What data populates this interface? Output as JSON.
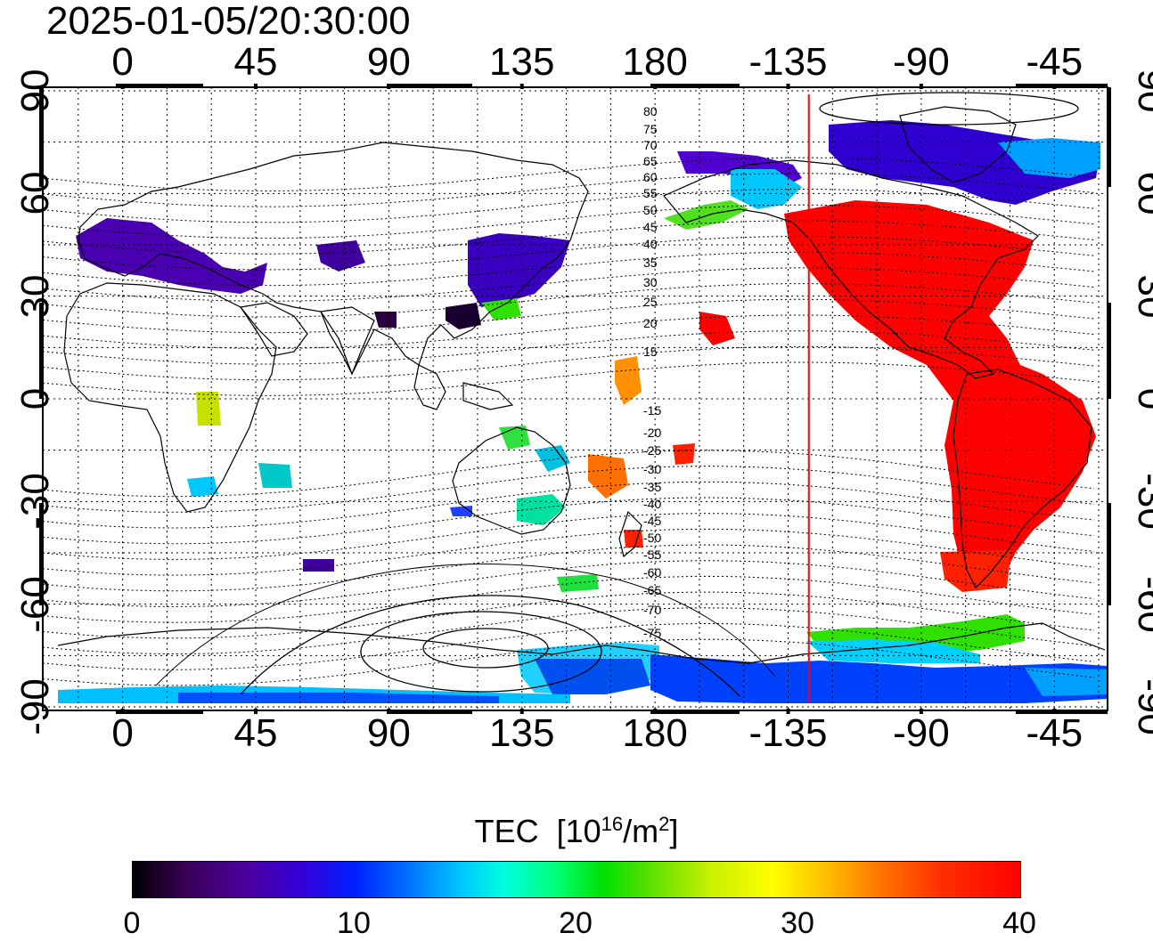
{
  "title": "2025-01-05/20:30:00",
  "map": {
    "lon_ticks": [
      "0",
      "45",
      "90",
      "135",
      "180",
      "-135",
      "-90",
      "-45"
    ],
    "lat_ticks": [
      "90",
      "60",
      "30",
      "0",
      "-30",
      "-60",
      "-90"
    ],
    "mlat_labels": [
      "80",
      "75",
      "70",
      "65",
      "60",
      "55",
      "50",
      "45",
      "40",
      "35",
      "30",
      "25",
      "20",
      "15",
      "-15",
      "-20",
      "-25",
      "-30",
      "-35",
      "-40",
      "-45",
      "-50",
      "-55",
      "-60",
      "-65",
      "-70",
      "-75"
    ],
    "terminator_lon": -128,
    "colors": {
      "terminator": "#ff0000",
      "grid": "#000000"
    }
  },
  "colorbar": {
    "title_main": "TEC",
    "title_unit_a": "[10",
    "title_sup_a": "16",
    "title_unit_b": "/m",
    "title_sup_b": "2",
    "title_unit_c": "]",
    "min": 0,
    "max": 40,
    "ticks": [
      "0",
      "10",
      "20",
      "30",
      "40"
    ]
  }
}
